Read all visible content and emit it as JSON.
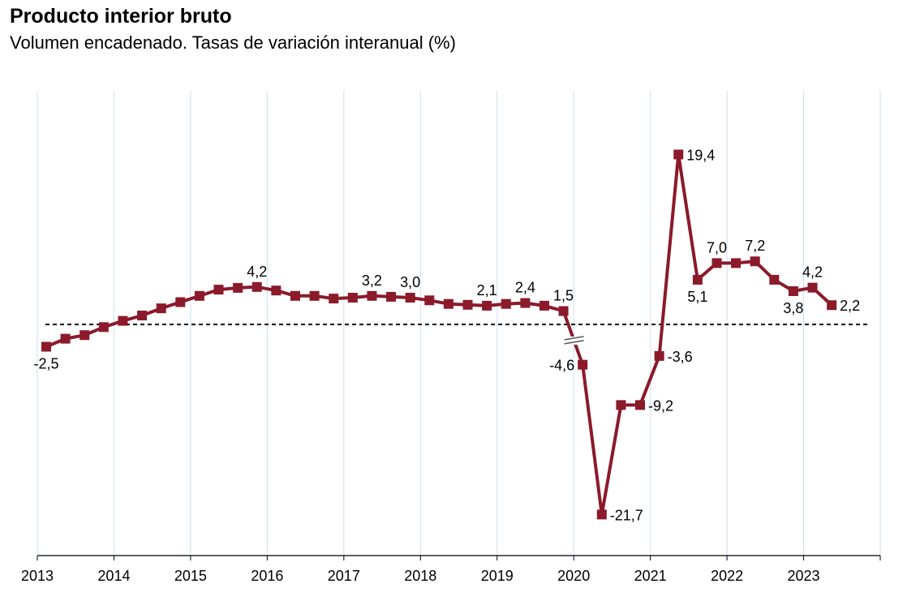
{
  "chart_data": {
    "type": "line",
    "title": "Producto interior bruto",
    "subtitle": "Volumen encadenado. Tasas de variación interanual (%)",
    "xlabel": "",
    "ylabel": "",
    "x_ticks": [
      "2013",
      "2014",
      "2015",
      "2016",
      "2017",
      "2018",
      "2019",
      "2020",
      "2021",
      "2022",
      "2023"
    ],
    "grid": "vertical",
    "reference_line": 0,
    "line_color": "#8b1a2b",
    "axis_break_after_period": "2019-T4",
    "series": [
      {
        "name": "",
        "periods": [
          "2013-T1",
          "2013-T2",
          "2013-T3",
          "2013-T4",
          "2014-T1",
          "2014-T2",
          "2014-T3",
          "2014-T4",
          "2015-T1",
          "2015-T2",
          "2015-T3",
          "2015-T4",
          "2016-T1",
          "2016-T2",
          "2016-T3",
          "2016-T4",
          "2017-T1",
          "2017-T2",
          "2017-T3",
          "2017-T4",
          "2018-T1",
          "2018-T2",
          "2018-T3",
          "2018-T4",
          "2019-T1",
          "2019-T2",
          "2019-T3",
          "2019-T4",
          "2020-T1",
          "2020-T2",
          "2020-T3",
          "2020-T4",
          "2021-T1",
          "2021-T2",
          "2021-T3",
          "2021-T4",
          "2022-T1",
          "2022-T2",
          "2022-T3",
          "2022-T4",
          "2023-T1",
          "2023-T2"
        ],
        "values": [
          -2.5,
          -1.6,
          -1.2,
          -0.3,
          0.4,
          1.0,
          1.8,
          2.5,
          3.2,
          3.9,
          4.1,
          4.2,
          3.8,
          3.2,
          3.2,
          2.9,
          3.0,
          3.2,
          3.1,
          3.0,
          2.7,
          2.3,
          2.2,
          2.1,
          2.3,
          2.4,
          2.1,
          1.5,
          -4.6,
          -21.7,
          -9.2,
          -9.2,
          -3.6,
          19.4,
          5.1,
          7.0,
          7.0,
          7.2,
          5.1,
          3.8,
          4.2,
          2.2
        ],
        "labels": [
          {
            "index": 0,
            "text": "-2,5",
            "pos": "below"
          },
          {
            "index": 11,
            "text": "4,2",
            "pos": "above"
          },
          {
            "index": 17,
            "text": "3,2",
            "pos": "above"
          },
          {
            "index": 19,
            "text": "3,0",
            "pos": "above"
          },
          {
            "index": 23,
            "text": "2,1",
            "pos": "above"
          },
          {
            "index": 25,
            "text": "2,4",
            "pos": "above"
          },
          {
            "index": 27,
            "text": "1,5",
            "pos": "above"
          },
          {
            "index": 28,
            "text": "-4,6",
            "pos": "left"
          },
          {
            "index": 29,
            "text": "-21,7",
            "pos": "right"
          },
          {
            "index": 31,
            "text": "-9,2",
            "pos": "right"
          },
          {
            "index": 32,
            "text": "-3,6",
            "pos": "right"
          },
          {
            "index": 33,
            "text": "19,4",
            "pos": "right"
          },
          {
            "index": 34,
            "text": "5,1",
            "pos": "below"
          },
          {
            "index": 35,
            "text": "7,0",
            "pos": "above"
          },
          {
            "index": 37,
            "text": "7,2",
            "pos": "above"
          },
          {
            "index": 39,
            "text": "3,8",
            "pos": "below"
          },
          {
            "index": 40,
            "text": "4,2",
            "pos": "above"
          },
          {
            "index": 41,
            "text": "2,2",
            "pos": "right"
          }
        ]
      }
    ]
  }
}
